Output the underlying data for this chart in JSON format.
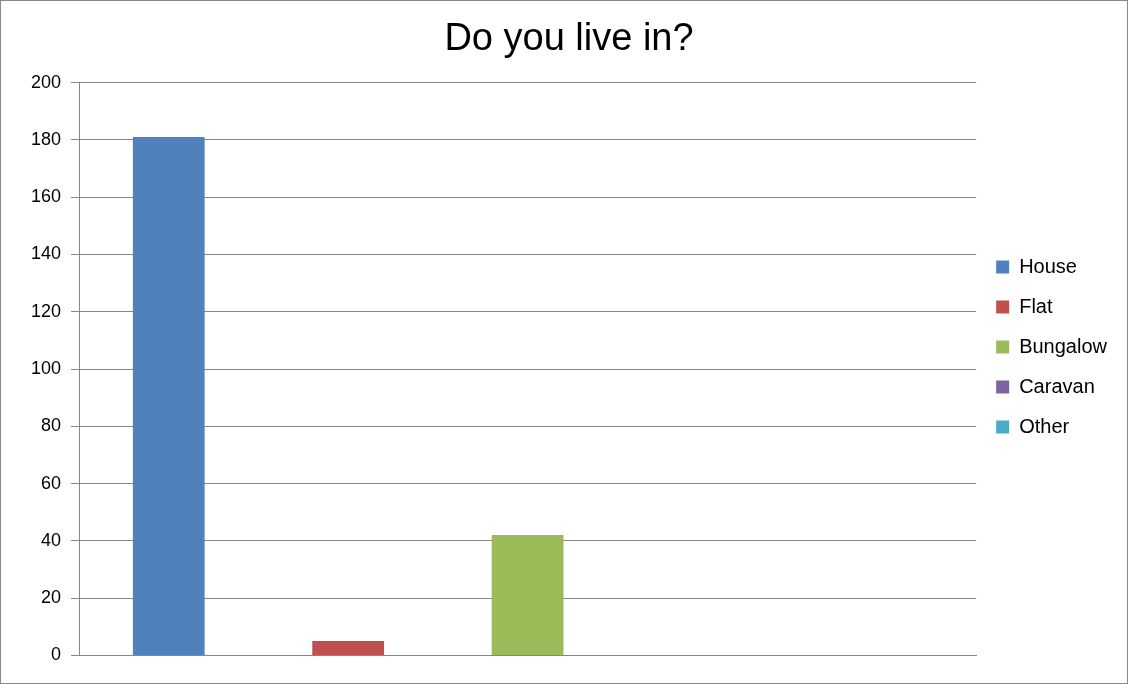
{
  "chart_data": {
    "type": "bar",
    "title": "Do you live in?",
    "categories": [
      null
    ],
    "series": [
      {
        "name": "House",
        "color": "#4f81bd",
        "values": [
          181
        ]
      },
      {
        "name": "Flat",
        "color": "#c0504d",
        "values": [
          5
        ]
      },
      {
        "name": "Bungalow",
        "color": "#9bbb59",
        "values": [
          42
        ]
      },
      {
        "name": "Caravan",
        "color": "#8064a2",
        "values": [
          0
        ]
      },
      {
        "name": "Other",
        "color": "#4bacc6",
        "values": [
          0
        ]
      }
    ],
    "ylim": [
      0,
      200
    ],
    "yticks": [
      0,
      20,
      40,
      60,
      80,
      100,
      120,
      140,
      160,
      180,
      200
    ],
    "grid": "y",
    "legend": "right"
  }
}
